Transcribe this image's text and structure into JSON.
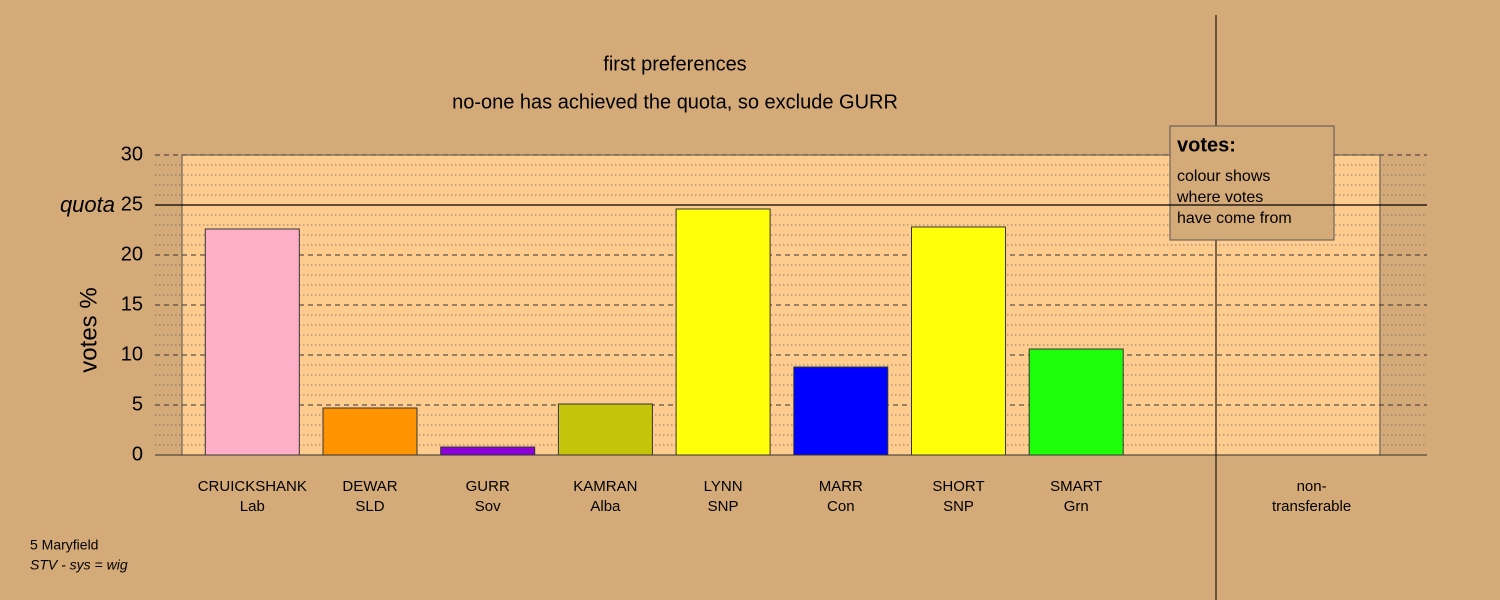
{
  "chart_data": {
    "type": "bar",
    "title": "first preferences",
    "subtitle": "no-one has achieved the quota, so exclude GURR",
    "y_label": "votes %",
    "categories": [
      "CRUICKSHANK",
      "DEWAR",
      "GURR",
      "KAMRAN",
      "LYNN",
      "MARR",
      "SHORT",
      "SMART",
      null,
      "non-"
    ],
    "parties": [
      "Lab",
      "SLD",
      "Sov",
      "Alba",
      "SNP",
      "Con",
      "SNP",
      "Grn",
      null,
      "transferable"
    ],
    "values": [
      22.6,
      4.7,
      0.8,
      5.1,
      24.6,
      8.8,
      22.8,
      10.6,
      null,
      null
    ],
    "colors": [
      "#ffb0c8",
      "#ff9400",
      "#8b00d8",
      "#c4c40a",
      "#ffff0a",
      "#0000ff",
      "#ffff0a",
      "#1eff0a",
      null,
      null
    ],
    "ylim": [
      0,
      30
    ],
    "yticks": [
      0,
      5,
      10,
      15,
      20,
      25,
      30
    ],
    "minor_yticks": [
      1,
      2,
      3,
      4,
      6,
      7,
      8,
      9,
      11,
      12,
      13,
      14,
      16,
      17,
      18,
      19,
      21,
      22,
      23,
      24,
      26,
      27,
      28,
      29
    ],
    "quota": 25,
    "quota_label": "quota",
    "legend": {
      "title": "votes:",
      "lines": [
        "colour shows",
        "where votes",
        "have come from"
      ]
    },
    "footer": [
      "5 Maryfield",
      "STV - sys = wig"
    ]
  }
}
